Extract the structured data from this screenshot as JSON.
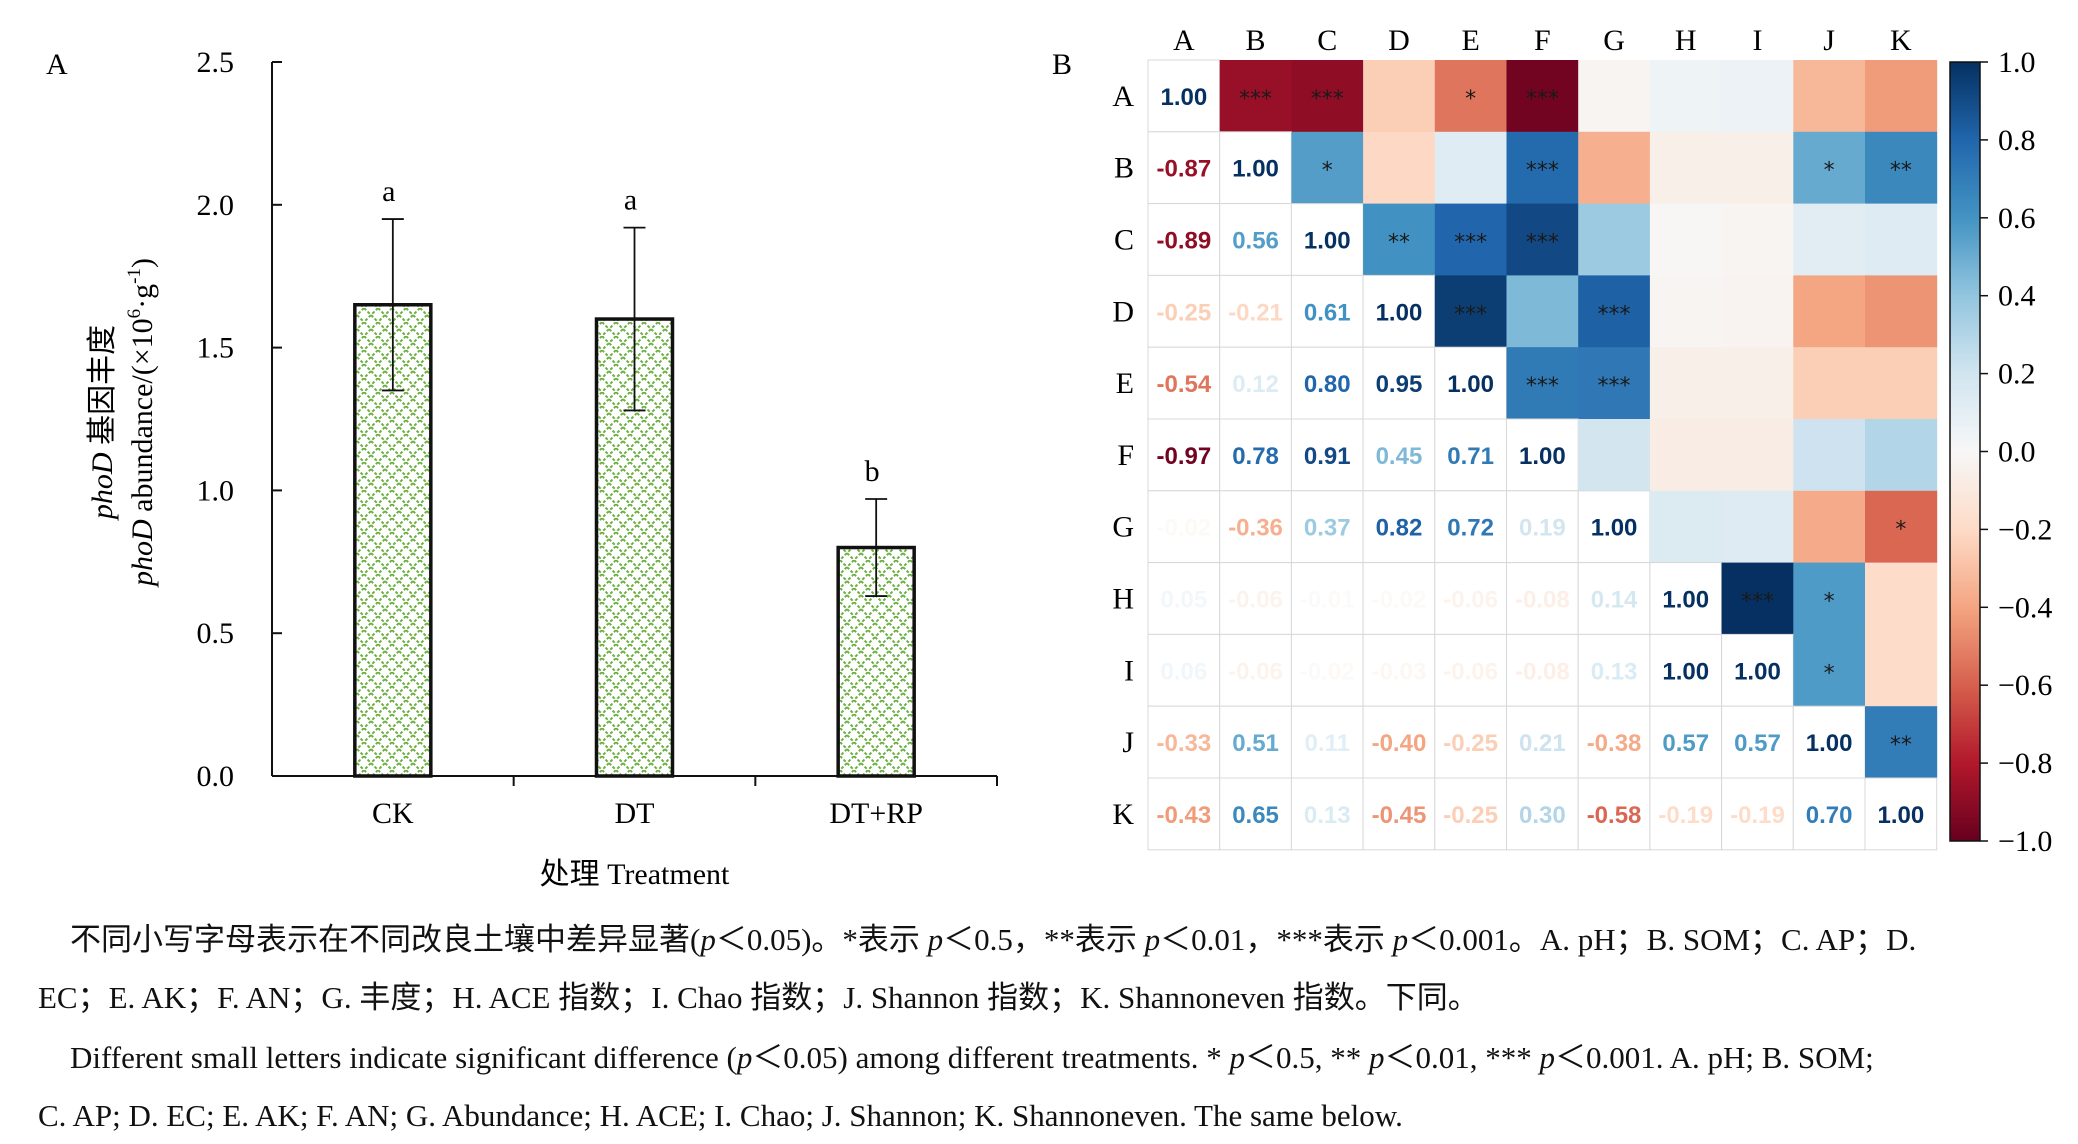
{
  "panelA": {
    "label": "A",
    "chart_data": {
      "type": "bar",
      "categories": [
        "CK",
        "DT",
        "DT+RP"
      ],
      "values": [
        1.65,
        1.6,
        0.8
      ],
      "errors": [
        0.3,
        0.32,
        0.17
      ],
      "sig_letters": [
        "a",
        "a",
        "b"
      ],
      "ylim": [
        0,
        2.5
      ],
      "yticks": [
        0.0,
        0.5,
        1.0,
        1.5,
        2.0,
        2.5
      ],
      "ytick_labels": [
        "0.0",
        "0.5",
        "1.0",
        "1.5",
        "2.0",
        "2.5"
      ],
      "ylabel_line1_italic": "phoD",
      "ylabel_line1_rest": " 基因丰度",
      "ylabel_line2_italic": "phoD",
      "ylabel_line2_rest": " abundance/(×10",
      "ylabel_sup1": "6",
      "ylabel_mid": "·g",
      "ylabel_sup2": "-1",
      "ylabel_end": ")",
      "xlabel": "处理 Treatment",
      "bar_fill": "#5fa83a",
      "bar_stroke": "#111111"
    }
  },
  "panelB": {
    "label": "B",
    "chart_data": {
      "type": "heatmap",
      "labels": [
        "A",
        "B",
        "C",
        "D",
        "E",
        "F",
        "G",
        "H",
        "I",
        "J",
        "K"
      ],
      "lower": [
        [
          1.0
        ],
        [
          -0.87,
          1.0
        ],
        [
          -0.89,
          0.56,
          1.0
        ],
        [
          -0.25,
          -0.21,
          0.61,
          1.0
        ],
        [
          -0.54,
          0.12,
          0.8,
          0.95,
          1.0
        ],
        [
          -0.97,
          0.78,
          0.91,
          0.45,
          0.71,
          1.0
        ],
        [
          -0.02,
          -0.36,
          0.37,
          0.82,
          0.72,
          0.19,
          1.0
        ],
        [
          0.05,
          -0.06,
          -0.01,
          -0.02,
          -0.06,
          -0.08,
          0.14,
          1.0
        ],
        [
          0.06,
          -0.06,
          -0.02,
          -0.03,
          -0.06,
          -0.08,
          0.13,
          1.0,
          1.0
        ],
        [
          -0.33,
          0.51,
          0.11,
          -0.4,
          -0.25,
          0.21,
          -0.38,
          0.57,
          0.57,
          1.0
        ],
        [
          -0.43,
          0.65,
          0.13,
          -0.45,
          -0.25,
          0.3,
          -0.58,
          -0.19,
          -0.19,
          0.7,
          1.0
        ]
      ],
      "stars": {
        "0-1": "***",
        "0-2": "***",
        "0-4": "*",
        "0-5": "***",
        "1-2": "*",
        "1-5": "***",
        "1-9": "*",
        "1-10": "**",
        "2-3": "**",
        "2-4": "***",
        "2-5": "***",
        "3-4": "***",
        "3-6": "***",
        "4-5": "***",
        "4-6": "***",
        "6-10": "*",
        "7-8": "***",
        "7-9": "*",
        "8-9": "*",
        "9-10": "**"
      },
      "colorbar_ticks": [
        "1.0",
        "0.8",
        "0.6",
        "0.4",
        "0.2",
        "0.0",
        "−0.2",
        "−0.4",
        "−0.6",
        "−0.8",
        "−1.0"
      ],
      "colorbar_range": [
        -1.0,
        1.0
      ],
      "color_neg": "#67001f",
      "color_mid": "#f7f7f7",
      "color_pos": "#053061"
    }
  },
  "caption": {
    "line1_parts": [
      {
        "t": "不同小写字母表示在不同改良土壤中差异显著("
      },
      {
        "t": "p",
        "i": true
      },
      {
        "t": "＜0.05)。*表示 "
      },
      {
        "t": "p",
        "i": true
      },
      {
        "t": "＜0.5，**表示 "
      },
      {
        "t": "p",
        "i": true
      },
      {
        "t": "＜0.01，***表示 "
      },
      {
        "t": "p",
        "i": true
      },
      {
        "t": "＜0.001。A. pH；B. SOM；C. AP；D."
      }
    ],
    "line2": "EC；E. AK；F. AN；G. 丰度；H. ACE 指数；I. Chao 指数；J. Shannon 指数；K. Shannoneven 指数。下同。",
    "line3_parts": [
      {
        "t": "Different small letters indicate significant difference ("
      },
      {
        "t": "p",
        "i": true
      },
      {
        "t": "＜0.05) among different treatments. * "
      },
      {
        "t": "p",
        "i": true
      },
      {
        "t": "＜0.5, ** "
      },
      {
        "t": "p",
        "i": true
      },
      {
        "t": "＜0.01, *** "
      },
      {
        "t": "p",
        "i": true
      },
      {
        "t": "＜0.001. A. pH; B. SOM;"
      }
    ],
    "line4": "C. AP; D. EC; E. AK; F. AN; G. Abundance; H. ACE; I. Chao; J. Shannon; K. Shannoneven. The same below."
  }
}
